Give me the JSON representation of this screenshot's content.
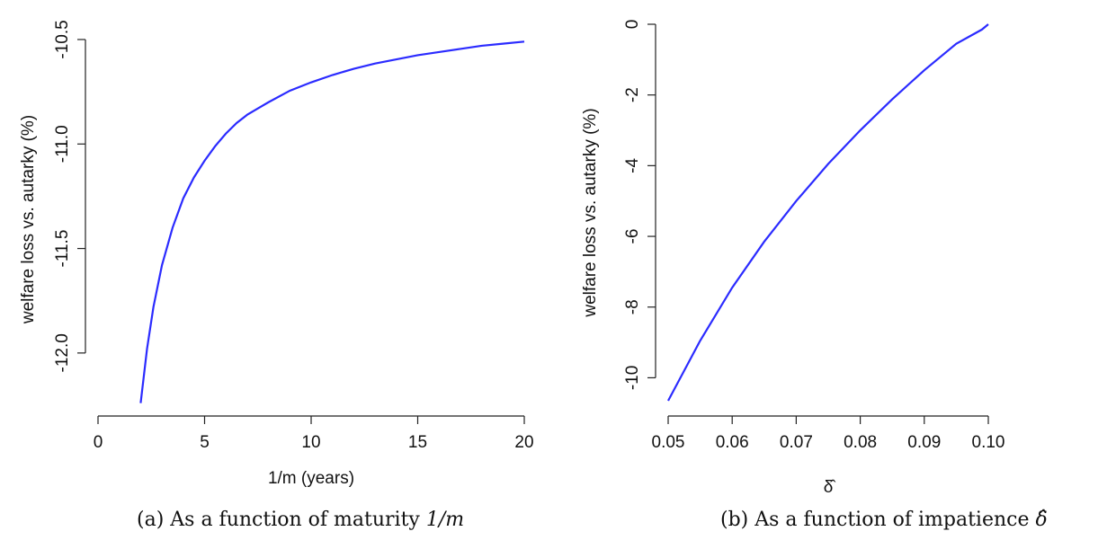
{
  "figure": {
    "captions": {
      "a": {
        "prefix": "(a) As a function of maturity",
        "math": "1/m"
      },
      "b": {
        "prefix": "(b) As a function of impatience",
        "math": "δ̂"
      }
    }
  },
  "chart_data": [
    {
      "type": "line",
      "title": "",
      "xlabel": "1/m (years)",
      "ylabel": "welfare loss vs. autarky (%)",
      "xlim": [
        0,
        20
      ],
      "ylim": [
        -12.25,
        -10.47
      ],
      "x_ticks": [
        0,
        5,
        10,
        15,
        20
      ],
      "x_tick_labels": [
        "0",
        "5",
        "10",
        "15",
        "20"
      ],
      "y_ticks": [
        -12.0,
        -11.5,
        -11.0,
        -10.5
      ],
      "y_tick_labels": [
        "-12.0",
        "-11.5",
        "-11.0",
        "-10.5"
      ],
      "grid": false,
      "colors": {
        "line": "#2b2bff"
      },
      "series": [
        {
          "x": [
            2,
            2.3,
            2.6,
            3,
            3.5,
            4,
            4.5,
            5,
            5.5,
            6,
            6.5,
            7,
            7.5,
            8,
            9,
            10,
            11,
            12,
            13,
            14,
            15,
            16,
            17,
            18,
            19,
            20
          ],
          "y": [
            -12.24,
            -11.98,
            -11.78,
            -11.58,
            -11.4,
            -11.26,
            -11.16,
            -11.08,
            -11.01,
            -10.95,
            -10.9,
            -10.86,
            -10.83,
            -10.8,
            -10.745,
            -10.705,
            -10.67,
            -10.64,
            -10.615,
            -10.595,
            -10.575,
            -10.56,
            -10.545,
            -10.53,
            -10.52,
            -10.51
          ]
        }
      ]
    },
    {
      "type": "line",
      "title": "",
      "xlabel": "δ̂",
      "ylabel": "welfare loss vs. autarky (%)",
      "xlim": [
        0.05,
        0.1
      ],
      "ylim": [
        -10.65,
        0
      ],
      "x_ticks": [
        0.05,
        0.06,
        0.07,
        0.08,
        0.09,
        0.1
      ],
      "x_tick_labels": [
        "0.05",
        "0.06",
        "0.07",
        "0.08",
        "0.09",
        "0.10"
      ],
      "y_ticks": [
        -10,
        -8,
        -6,
        -4,
        -2,
        0
      ],
      "y_tick_labels": [
        "-10",
        "-8",
        "-6",
        "-4",
        "-2",
        "0"
      ],
      "grid": false,
      "colors": {
        "line": "#2b2bff"
      },
      "series": [
        {
          "x": [
            0.05,
            0.055,
            0.06,
            0.065,
            0.07,
            0.075,
            0.08,
            0.085,
            0.09,
            0.095,
            0.099,
            0.1
          ],
          "y": [
            -10.65,
            -8.95,
            -7.45,
            -6.15,
            -5.0,
            -3.95,
            -3.0,
            -2.12,
            -1.3,
            -0.55,
            -0.15,
            0.0
          ]
        }
      ]
    }
  ]
}
